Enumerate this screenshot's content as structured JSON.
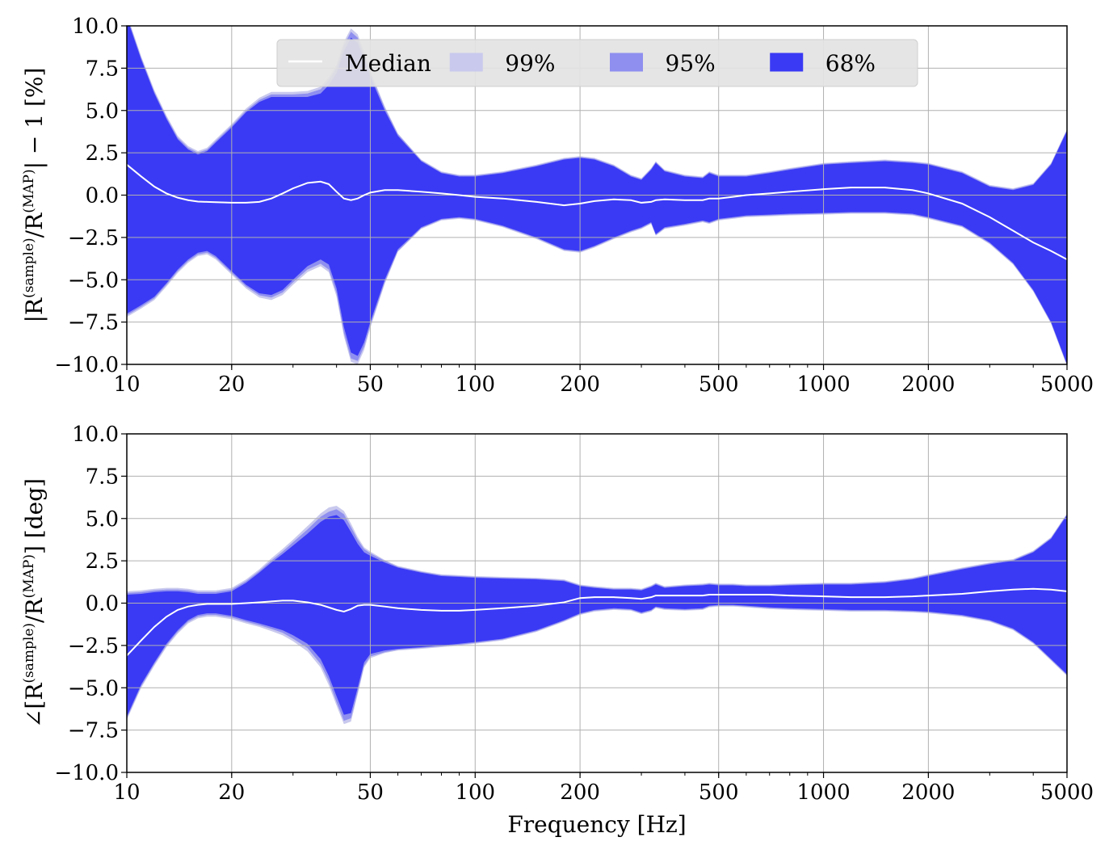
{
  "chart_data": [
    {
      "type": "area",
      "xscale": "log",
      "xlim": [
        10,
        5000
      ],
      "ylim": [
        -10,
        10
      ],
      "xticks": [
        10,
        20,
        50,
        100,
        200,
        500,
        1000,
        2000,
        5000
      ],
      "xtick_labels": [
        "10",
        "20",
        "50",
        "100",
        "200",
        "500",
        "1000",
        "2000",
        "5000"
      ],
      "yticks": [
        -10,
        -7.5,
        -5,
        -2.5,
        0,
        2.5,
        5,
        7.5,
        10
      ],
      "ytick_labels": [
        "−10.0",
        "−7.5",
        "−5.0",
        "−2.5",
        "0.0",
        "2.5",
        "5.0",
        "7.5",
        "10.0"
      ],
      "ylabel": "|R(sample)/R(MAP)| − 1 [%]",
      "ylabel_parts": {
        "pre": "|R",
        "sup1": "(sample)",
        "mid": "/R",
        "sup2": "(MAP)",
        "post": "| − 1 [%]"
      },
      "xlabel": "",
      "grid": true,
      "legend": {
        "placement": "top-center",
        "entries": [
          {
            "label": "Median",
            "kind": "line",
            "color": "#ffffff"
          },
          {
            "label": "99%",
            "kind": "patch",
            "color": "#c9c9ee"
          },
          {
            "label": "95%",
            "kind": "patch",
            "color": "#8f8ff0"
          },
          {
            "label": "68%",
            "kind": "patch",
            "color": "#3a3af5"
          }
        ]
      },
      "x": [
        10,
        11,
        12,
        13,
        14,
        15,
        16,
        17,
        18,
        20,
        22,
        24,
        26,
        28,
        30,
        33,
        36,
        38,
        40,
        42,
        44,
        46,
        48,
        50,
        55,
        60,
        70,
        80,
        90,
        100,
        120,
        150,
        180,
        200,
        220,
        250,
        280,
        300,
        320,
        330,
        350,
        400,
        450,
        470,
        500,
        550,
        600,
        700,
        800,
        1000,
        1200,
        1500,
        1800,
        2000,
        2500,
        3000,
        3500,
        4000,
        4500,
        5000
      ],
      "median": [
        1.8,
        1.1,
        0.5,
        0.1,
        -0.15,
        -0.3,
        -0.38,
        -0.4,
        -0.42,
        -0.45,
        -0.45,
        -0.4,
        -0.2,
        0.1,
        0.4,
        0.72,
        0.8,
        0.65,
        0.2,
        -0.2,
        -0.3,
        -0.2,
        0.0,
        0.15,
        0.3,
        0.3,
        0.2,
        0.1,
        0.0,
        -0.1,
        -0.2,
        -0.4,
        -0.6,
        -0.5,
        -0.35,
        -0.25,
        -0.3,
        -0.45,
        -0.4,
        -0.3,
        -0.25,
        -0.3,
        -0.3,
        -0.2,
        -0.2,
        -0.1,
        0.0,
        0.1,
        0.2,
        0.35,
        0.45,
        0.45,
        0.3,
        0.1,
        -0.5,
        -1.3,
        -2.1,
        -2.8,
        -3.3,
        -3.8
      ],
      "band68": {
        "upper": [
          10.5,
          8.0,
          6.0,
          4.5,
          3.3,
          2.7,
          2.4,
          2.6,
          3.1,
          4.0,
          4.9,
          5.5,
          5.8,
          5.8,
          5.8,
          5.8,
          6.0,
          6.5,
          7.2,
          8.5,
          9.3,
          9.0,
          8.0,
          7.0,
          5.0,
          3.5,
          2.0,
          1.3,
          1.1,
          1.1,
          1.3,
          1.7,
          2.1,
          2.2,
          2.1,
          1.7,
          1.1,
          0.9,
          1.5,
          1.9,
          1.4,
          1.1,
          1.0,
          1.3,
          1.1,
          1.1,
          1.1,
          1.3,
          1.5,
          1.8,
          1.9,
          2.0,
          1.9,
          1.8,
          1.3,
          0.5,
          0.3,
          0.6,
          1.8,
          3.8
        ],
        "lower": [
          -7.0,
          -6.5,
          -6.0,
          -5.2,
          -4.4,
          -3.8,
          -3.4,
          -3.3,
          -3.6,
          -4.5,
          -5.3,
          -5.8,
          -5.9,
          -5.6,
          -5.0,
          -4.2,
          -3.8,
          -4.1,
          -5.5,
          -7.8,
          -9.3,
          -9.5,
          -8.7,
          -7.5,
          -5.0,
          -3.2,
          -1.9,
          -1.4,
          -1.3,
          -1.4,
          -1.8,
          -2.5,
          -3.2,
          -3.3,
          -3.0,
          -2.5,
          -2.1,
          -1.9,
          -1.6,
          -2.3,
          -1.9,
          -1.7,
          -1.5,
          -1.6,
          -1.4,
          -1.3,
          -1.2,
          -1.15,
          -1.1,
          -1.05,
          -1.0,
          -1.0,
          -1.1,
          -1.3,
          -1.8,
          -2.8,
          -4.0,
          -5.6,
          -7.5,
          -10.0
        ]
      },
      "band95_pad": [
        0.1,
        0.1,
        0.1,
        0.1,
        0.1,
        0.1,
        0.1,
        0.1,
        0.1,
        0.1,
        0.1,
        0.12,
        0.15,
        0.15,
        0.15,
        0.2,
        0.25,
        0.3,
        0.3,
        0.35,
        0.35,
        0.3,
        0.25,
        0.2,
        0.15,
        0.1,
        0.05,
        0.05,
        0.05,
        0.05,
        0.05,
        0.05,
        0.05,
        0.05,
        0.05,
        0.05,
        0.05,
        0.05,
        0.05,
        0.05,
        0.05,
        0.05,
        0.05,
        0.05,
        0.05,
        0.05,
        0.05,
        0.05,
        0.05,
        0.05,
        0.05,
        0.05,
        0.05,
        0.05,
        0.05,
        0.05,
        0.05,
        0.05,
        0.05,
        0.05
      ],
      "band99_pad": [
        0.2,
        0.2,
        0.2,
        0.2,
        0.2,
        0.2,
        0.2,
        0.2,
        0.2,
        0.2,
        0.22,
        0.25,
        0.3,
        0.3,
        0.3,
        0.35,
        0.4,
        0.45,
        0.5,
        0.55,
        0.55,
        0.5,
        0.45,
        0.35,
        0.25,
        0.15,
        0.1,
        0.1,
        0.1,
        0.1,
        0.1,
        0.1,
        0.1,
        0.1,
        0.1,
        0.1,
        0.1,
        0.1,
        0.1,
        0.1,
        0.1,
        0.1,
        0.1,
        0.1,
        0.1,
        0.1,
        0.1,
        0.1,
        0.1,
        0.1,
        0.1,
        0.1,
        0.1,
        0.1,
        0.1,
        0.1,
        0.1,
        0.1,
        0.1,
        0.1
      ]
    },
    {
      "type": "area",
      "xscale": "log",
      "xlim": [
        10,
        5000
      ],
      "ylim": [
        -10,
        10
      ],
      "xticks": [
        10,
        20,
        50,
        100,
        200,
        500,
        1000,
        2000,
        5000
      ],
      "xtick_labels": [
        "10",
        "20",
        "50",
        "100",
        "200",
        "500",
        "1000",
        "2000",
        "5000"
      ],
      "yticks": [
        -10,
        -7.5,
        -5,
        -2.5,
        0,
        2.5,
        5,
        7.5,
        10
      ],
      "ytick_labels": [
        "−10.0",
        "−7.5",
        "−5.0",
        "−2.5",
        "0.0",
        "2.5",
        "5.0",
        "7.5",
        "10.0"
      ],
      "ylabel": "∠[R(sample)/R(MAP)] [deg]",
      "ylabel_parts": {
        "pre": "∠[R",
        "sup1": "(sample)",
        "mid": "/R",
        "sup2": "(MAP)",
        "post": "] [deg]"
      },
      "xlabel": "Frequency [Hz]",
      "grid": true,
      "x": [
        10,
        11,
        12,
        13,
        14,
        15,
        16,
        17,
        18,
        20,
        22,
        24,
        26,
        28,
        30,
        33,
        36,
        38,
        40,
        42,
        44,
        46,
        48,
        50,
        55,
        60,
        70,
        80,
        90,
        100,
        120,
        150,
        180,
        200,
        220,
        250,
        280,
        300,
        320,
        330,
        350,
        400,
        450,
        470,
        500,
        550,
        600,
        700,
        800,
        1000,
        1200,
        1500,
        1800,
        2000,
        2500,
        3000,
        3500,
        4000,
        4500,
        5000
      ],
      "median": [
        -3.1,
        -2.2,
        -1.4,
        -0.8,
        -0.4,
        -0.2,
        -0.1,
        -0.05,
        -0.05,
        -0.05,
        0.0,
        0.05,
        0.1,
        0.15,
        0.15,
        0.05,
        -0.1,
        -0.25,
        -0.4,
        -0.5,
        -0.35,
        -0.15,
        -0.1,
        -0.1,
        -0.2,
        -0.3,
        -0.4,
        -0.45,
        -0.45,
        -0.4,
        -0.3,
        -0.15,
        0.05,
        0.3,
        0.35,
        0.35,
        0.3,
        0.25,
        0.35,
        0.45,
        0.45,
        0.45,
        0.45,
        0.5,
        0.5,
        0.5,
        0.5,
        0.5,
        0.45,
        0.4,
        0.35,
        0.35,
        0.4,
        0.45,
        0.55,
        0.7,
        0.8,
        0.85,
        0.8,
        0.7
      ],
      "band68": {
        "upper": [
          0.5,
          0.55,
          0.65,
          0.7,
          0.7,
          0.65,
          0.55,
          0.55,
          0.55,
          0.7,
          1.2,
          1.8,
          2.4,
          2.9,
          3.4,
          4.1,
          4.8,
          5.1,
          5.2,
          4.9,
          4.2,
          3.5,
          3.0,
          2.8,
          2.4,
          2.1,
          1.8,
          1.6,
          1.55,
          1.5,
          1.45,
          1.4,
          1.3,
          1.0,
          0.9,
          0.8,
          0.8,
          0.75,
          0.95,
          1.1,
          0.9,
          1.0,
          1.05,
          1.1,
          1.05,
          1.05,
          1.0,
          1.0,
          1.05,
          1.1,
          1.1,
          1.2,
          1.4,
          1.6,
          2.0,
          2.3,
          2.5,
          3.0,
          3.8,
          5.2
        ],
        "lower": [
          -6.7,
          -4.8,
          -3.5,
          -2.4,
          -1.6,
          -1.0,
          -0.7,
          -0.6,
          -0.6,
          -0.75,
          -1.0,
          -1.2,
          -1.4,
          -1.6,
          -1.9,
          -2.4,
          -3.3,
          -4.3,
          -5.5,
          -6.6,
          -6.5,
          -5.0,
          -3.5,
          -3.0,
          -2.8,
          -2.7,
          -2.6,
          -2.5,
          -2.4,
          -2.3,
          -2.1,
          -1.6,
          -1.0,
          -0.6,
          -0.4,
          -0.3,
          -0.35,
          -0.55,
          -0.4,
          -0.2,
          -0.3,
          -0.35,
          -0.3,
          -0.15,
          -0.1,
          -0.1,
          -0.15,
          -0.25,
          -0.3,
          -0.35,
          -0.4,
          -0.4,
          -0.45,
          -0.5,
          -0.7,
          -1.0,
          -1.5,
          -2.3,
          -3.3,
          -4.2
        ]
      },
      "band95_pad": [
        0.1,
        0.1,
        0.1,
        0.1,
        0.1,
        0.1,
        0.1,
        0.1,
        0.1,
        0.1,
        0.1,
        0.1,
        0.12,
        0.15,
        0.2,
        0.25,
        0.3,
        0.3,
        0.35,
        0.35,
        0.3,
        0.25,
        0.2,
        0.15,
        0.1,
        0.05,
        0.05,
        0.05,
        0.05,
        0.05,
        0.05,
        0.05,
        0.05,
        0.05,
        0.05,
        0.05,
        0.05,
        0.05,
        0.05,
        0.05,
        0.05,
        0.05,
        0.05,
        0.05,
        0.05,
        0.05,
        0.05,
        0.05,
        0.05,
        0.05,
        0.05,
        0.05,
        0.05,
        0.05,
        0.05,
        0.05,
        0.05,
        0.05,
        0.05,
        0.05
      ],
      "band99_pad": [
        0.2,
        0.2,
        0.2,
        0.2,
        0.2,
        0.2,
        0.2,
        0.2,
        0.2,
        0.2,
        0.2,
        0.2,
        0.25,
        0.3,
        0.35,
        0.45,
        0.5,
        0.55,
        0.55,
        0.55,
        0.5,
        0.4,
        0.3,
        0.25,
        0.15,
        0.1,
        0.1,
        0.1,
        0.1,
        0.1,
        0.1,
        0.1,
        0.1,
        0.1,
        0.1,
        0.1,
        0.1,
        0.1,
        0.1,
        0.1,
        0.1,
        0.1,
        0.1,
        0.1,
        0.1,
        0.1,
        0.1,
        0.1,
        0.1,
        0.1,
        0.1,
        0.1,
        0.1,
        0.1,
        0.1,
        0.1,
        0.1,
        0.1,
        0.1,
        0.1
      ]
    }
  ],
  "colors": {
    "band68": "#3a3af5",
    "band95": "#8f8ff0",
    "band99": "#c9c9ee",
    "median": "#ffffff",
    "grid": "#b0b0b0"
  }
}
